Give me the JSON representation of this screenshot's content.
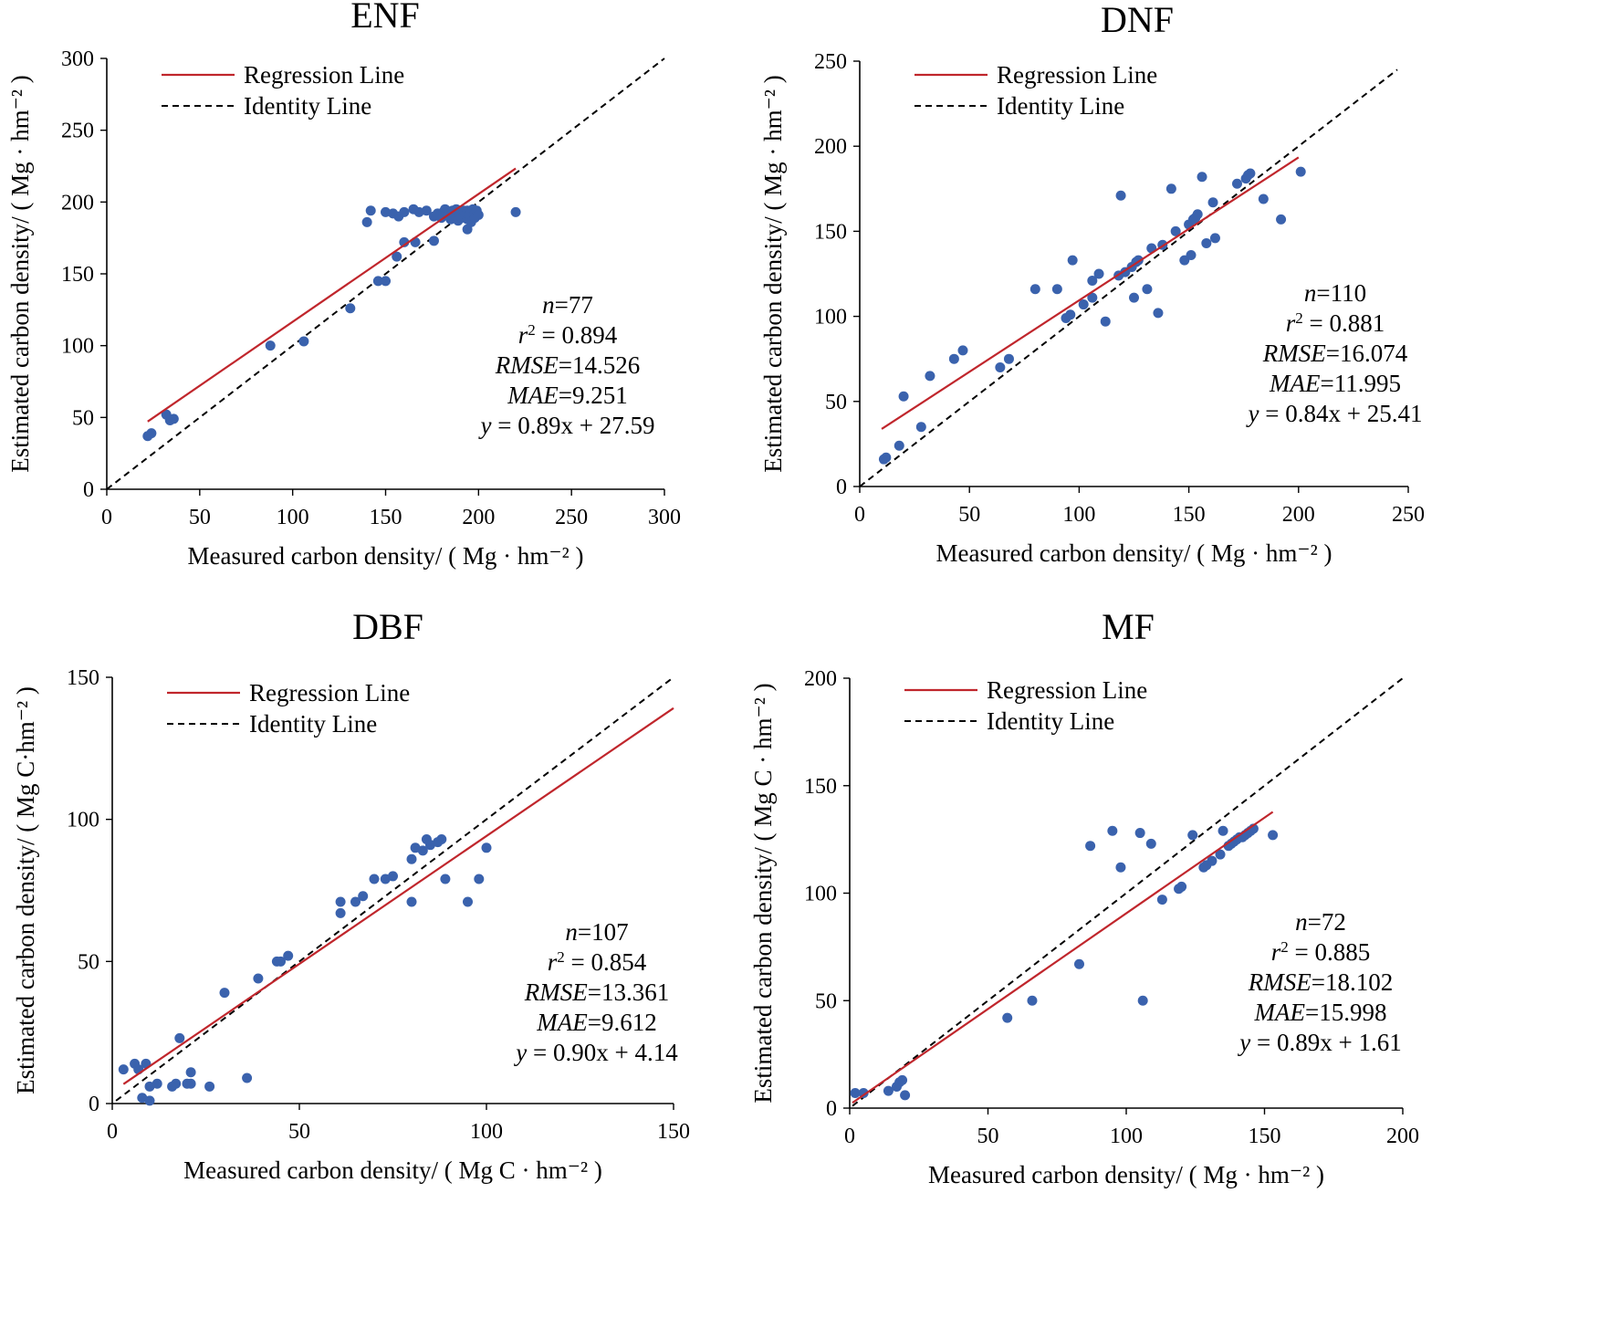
{
  "figure": {
    "legend_labels": {
      "regression": "Regression Line",
      "identity": "Identity Line"
    },
    "colors": {
      "points": "#3a62ad",
      "regression": "#c0262c",
      "identity": "#000000",
      "axis": "#000000"
    }
  },
  "chart_data": [
    {
      "type": "scatter",
      "title": "ENF",
      "xlabel": "Measured carbon density/ ( Mg · hm⁻² )",
      "ylabel": "Estimated carbon density/ ( Mg · hm⁻² )",
      "xlim": [
        0,
        300
      ],
      "ylim": [
        0,
        300
      ],
      "xticks": [
        0,
        50,
        100,
        150,
        200,
        250,
        300
      ],
      "yticks": [
        0,
        50,
        100,
        150,
        200,
        250,
        300
      ],
      "regression": {
        "slope": 0.89,
        "intercept": 27.59,
        "x_range": [
          22,
          220
        ]
      },
      "identity": {
        "x_range": [
          0,
          300
        ]
      },
      "legend_position": "top-left",
      "stats": {
        "n": "77",
        "r2": "0.894",
        "rmse": "14.526",
        "mae": "9.251",
        "equation": "0.89x + 27.59"
      },
      "points": [
        [
          22,
          37
        ],
        [
          24,
          39
        ],
        [
          32,
          52
        ],
        [
          34,
          48
        ],
        [
          36,
          49
        ],
        [
          88,
          100
        ],
        [
          106,
          103
        ],
        [
          131,
          126
        ],
        [
          146,
          145
        ],
        [
          150,
          145
        ],
        [
          156,
          162
        ],
        [
          160,
          172
        ],
        [
          166,
          172
        ],
        [
          176,
          173
        ],
        [
          140,
          186
        ],
        [
          142,
          194
        ],
        [
          150,
          193
        ],
        [
          154,
          192
        ],
        [
          157,
          190
        ],
        [
          160,
          193
        ],
        [
          165,
          195
        ],
        [
          168,
          193
        ],
        [
          172,
          194
        ],
        [
          176,
          190
        ],
        [
          178,
          192
        ],
        [
          180,
          189
        ],
        [
          181,
          193
        ],
        [
          182,
          195
        ],
        [
          184,
          192
        ],
        [
          185,
          188
        ],
        [
          186,
          194
        ],
        [
          187,
          191
        ],
        [
          188,
          195
        ],
        [
          189,
          187
        ],
        [
          190,
          190
        ],
        [
          190,
          193
        ],
        [
          191,
          189
        ],
        [
          192,
          194
        ],
        [
          193,
          191
        ],
        [
          194,
          188
        ],
        [
          194,
          194
        ],
        [
          195,
          191
        ],
        [
          196,
          193
        ],
        [
          196,
          186
        ],
        [
          197,
          195
        ],
        [
          198,
          192
        ],
        [
          198,
          189
        ],
        [
          199,
          194
        ],
        [
          200,
          191
        ],
        [
          194,
          181
        ],
        [
          220,
          193
        ]
      ]
    },
    {
      "type": "scatter",
      "title": "DNF",
      "xlabel": "Measured carbon density/ ( Mg · hm⁻² )",
      "ylabel": "Estimated carbon density/ ( Mg · hm⁻² )",
      "xlim": [
        0,
        250
      ],
      "ylim": [
        0,
        250
      ],
      "xticks": [
        0,
        50,
        100,
        150,
        200,
        250
      ],
      "yticks": [
        0,
        50,
        100,
        150,
        200,
        250
      ],
      "regression": {
        "slope": 0.84,
        "intercept": 25.41,
        "x_range": [
          10,
          200
        ]
      },
      "identity": {
        "x_range": [
          0,
          245
        ]
      },
      "legend_position": "top-left",
      "stats": {
        "n": "110",
        "r2": "0.881",
        "rmse": "16.074",
        "mae": "11.995",
        "equation": "0.84x + 25.41"
      },
      "points": [
        [
          11,
          16
        ],
        [
          12,
          17
        ],
        [
          18,
          24
        ],
        [
          20,
          53
        ],
        [
          28,
          35
        ],
        [
          32,
          65
        ],
        [
          43,
          75
        ],
        [
          47,
          80
        ],
        [
          64,
          70
        ],
        [
          68,
          75
        ],
        [
          80,
          116
        ],
        [
          90,
          116
        ],
        [
          94,
          99
        ],
        [
          96,
          101
        ],
        [
          97,
          133
        ],
        [
          102,
          107
        ],
        [
          106,
          121
        ],
        [
          106,
          111
        ],
        [
          109,
          125
        ],
        [
          112,
          97
        ],
        [
          118,
          124
        ],
        [
          119,
          171
        ],
        [
          121,
          126
        ],
        [
          124,
          129
        ],
        [
          125,
          111
        ],
        [
          126,
          132
        ],
        [
          127,
          133
        ],
        [
          131,
          116
        ],
        [
          133,
          140
        ],
        [
          136,
          102
        ],
        [
          138,
          142
        ],
        [
          142,
          175
        ],
        [
          144,
          150
        ],
        [
          148,
          133
        ],
        [
          150,
          154
        ],
        [
          151,
          136
        ],
        [
          152,
          157
        ],
        [
          153,
          158
        ],
        [
          154,
          160
        ],
        [
          156,
          182
        ],
        [
          158,
          143
        ],
        [
          161,
          167
        ],
        [
          162,
          146
        ],
        [
          172,
          178
        ],
        [
          176,
          181
        ],
        [
          177,
          183
        ],
        [
          178,
          184
        ],
        [
          184,
          169
        ],
        [
          192,
          157
        ],
        [
          201,
          185
        ]
      ]
    },
    {
      "type": "scatter",
      "title": "DBF",
      "xlabel": "Measured carbon density/ ( Mg C · hm⁻² )",
      "ylabel": "Estimated carbon density/ ( Mg C·hm⁻² )",
      "xlim": [
        0,
        150
      ],
      "ylim": [
        0,
        150
      ],
      "xticks": [
        0,
        50,
        100,
        150
      ],
      "yticks": [
        0,
        50,
        100,
        150
      ],
      "regression": {
        "slope": 0.9,
        "intercept": 4.14,
        "x_range": [
          3,
          150
        ]
      },
      "identity": {
        "x_range": [
          1,
          150
        ]
      },
      "legend_position": "top-left",
      "stats": {
        "n": "107",
        "r2": "0.854",
        "rmse": "13.361",
        "mae": "9.612",
        "equation": "0.90x + 4.14"
      },
      "points": [
        [
          3,
          12
        ],
        [
          6,
          14
        ],
        [
          7,
          12
        ],
        [
          8,
          2
        ],
        [
          9,
          14
        ],
        [
          10,
          1
        ],
        [
          10,
          6
        ],
        [
          12,
          7
        ],
        [
          16,
          6
        ],
        [
          17,
          7
        ],
        [
          18,
          23
        ],
        [
          20,
          7
        ],
        [
          21,
          7
        ],
        [
          21,
          11
        ],
        [
          26,
          6
        ],
        [
          30,
          39
        ],
        [
          36,
          9
        ],
        [
          39,
          44
        ],
        [
          44,
          50
        ],
        [
          45,
          50
        ],
        [
          47,
          52
        ],
        [
          61,
          67
        ],
        [
          61,
          71
        ],
        [
          65,
          71
        ],
        [
          67,
          73
        ],
        [
          70,
          79
        ],
        [
          73,
          79
        ],
        [
          75,
          80
        ],
        [
          80,
          71
        ],
        [
          80,
          86
        ],
        [
          81,
          90
        ],
        [
          83,
          89
        ],
        [
          84,
          93
        ],
        [
          85,
          91
        ],
        [
          87,
          92
        ],
        [
          88,
          93
        ],
        [
          89,
          79
        ],
        [
          95,
          71
        ],
        [
          98,
          79
        ],
        [
          100,
          90
        ]
      ]
    },
    {
      "type": "scatter",
      "title": "MF",
      "xlabel": "Measured carbon density/ ( Mg · hm⁻² )",
      "ylabel": "Estimated carbon density/ ( Mg C · hm⁻² )",
      "xlim": [
        0,
        200
      ],
      "ylim": [
        0,
        200
      ],
      "xticks": [
        0,
        50,
        100,
        150,
        200
      ],
      "yticks": [
        0,
        50,
        100,
        150,
        200
      ],
      "regression": {
        "slope": 0.89,
        "intercept": 1.61,
        "x_range": [
          1,
          153
        ]
      },
      "identity": {
        "x_range": [
          1,
          200
        ]
      },
      "legend_position": "top-left",
      "stats": {
        "n": "72",
        "r2": "0.885",
        "rmse": "18.102",
        "mae": "15.998",
        "equation": "0.89x + 1.61"
      },
      "points": [
        [
          2,
          7
        ],
        [
          5,
          7
        ],
        [
          14,
          8
        ],
        [
          17,
          10
        ],
        [
          18,
          12
        ],
        [
          19,
          13
        ],
        [
          20,
          6
        ],
        [
          57,
          42
        ],
        [
          66,
          50
        ],
        [
          83,
          67
        ],
        [
          87,
          122
        ],
        [
          95,
          129
        ],
        [
          98,
          112
        ],
        [
          105,
          128
        ],
        [
          106,
          50
        ],
        [
          109,
          123
        ],
        [
          113,
          97
        ],
        [
          119,
          102
        ],
        [
          120,
          103
        ],
        [
          124,
          127
        ],
        [
          128,
          112
        ],
        [
          129,
          113
        ],
        [
          131,
          115
        ],
        [
          134,
          118
        ],
        [
          135,
          129
        ],
        [
          137,
          122
        ],
        [
          138,
          123
        ],
        [
          139,
          124
        ],
        [
          140,
          125
        ],
        [
          141,
          126
        ],
        [
          142,
          126
        ],
        [
          143,
          127
        ],
        [
          144,
          128
        ],
        [
          145,
          129
        ],
        [
          146,
          130
        ],
        [
          153,
          127
        ]
      ]
    }
  ]
}
